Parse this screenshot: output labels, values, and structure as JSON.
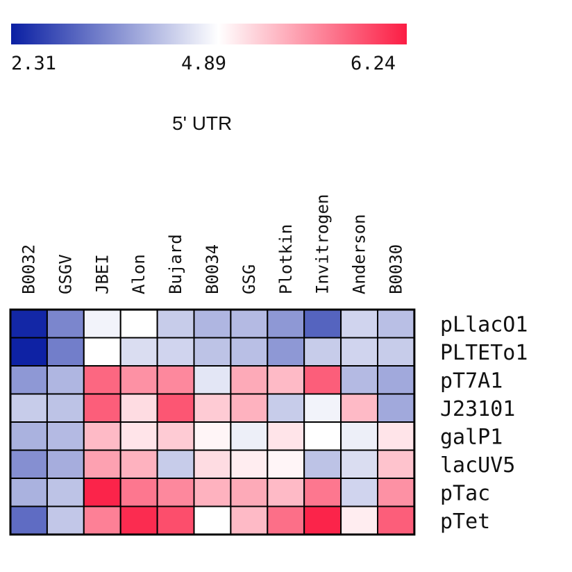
{
  "chart_data": {
    "type": "heatmap",
    "title": "5' UTR",
    "colorbar": {
      "min": 2.31,
      "mid": 4.89,
      "max": 6.24,
      "tick_labels": [
        "2.31",
        "4.89",
        "6.24"
      ],
      "low_color": "#0a1fa3",
      "mid_color": "#ffffff",
      "high_color": "#fb1d44"
    },
    "columns": [
      "B0032",
      "GSGV",
      "JBEI",
      "Alon",
      "Bujard",
      "B0034",
      "GSG",
      "Plotkin",
      "Invitrogen",
      "Anderson",
      "B0030"
    ],
    "rows": [
      "pLlacO1",
      "PLTETo1",
      "pT7A1",
      "J23101",
      "galP1",
      "lacUV5",
      "pTac",
      "pTet"
    ],
    "values": [
      [
        2.4,
        3.5,
        4.75,
        4.89,
        4.3,
        4.05,
        4.1,
        3.7,
        3.1,
        4.4,
        4.15
      ],
      [
        2.35,
        3.4,
        4.89,
        4.5,
        4.4,
        4.2,
        4.15,
        3.7,
        4.3,
        4.4,
        4.3
      ],
      [
        3.7,
        4.05,
        5.8,
        5.55,
        5.6,
        4.6,
        5.4,
        5.3,
        5.85,
        4.1,
        3.9
      ],
      [
        4.3,
        4.2,
        5.85,
        5.1,
        5.9,
        5.2,
        5.35,
        4.3,
        4.75,
        5.3,
        3.9
      ],
      [
        4.0,
        4.1,
        5.3,
        5.05,
        5.2,
        4.95,
        4.7,
        5.05,
        4.89,
        4.7,
        5.05
      ],
      [
        3.6,
        3.95,
        5.45,
        5.35,
        4.3,
        5.1,
        5.0,
        4.95,
        4.2,
        4.5,
        5.25
      ],
      [
        4.0,
        4.2,
        6.2,
        5.7,
        5.6,
        5.35,
        5.4,
        5.3,
        5.7,
        4.4,
        5.55
      ],
      [
        3.2,
        4.25,
        5.65,
        6.15,
        5.95,
        4.89,
        5.3,
        5.75,
        6.2,
        5.0,
        5.85
      ]
    ]
  }
}
